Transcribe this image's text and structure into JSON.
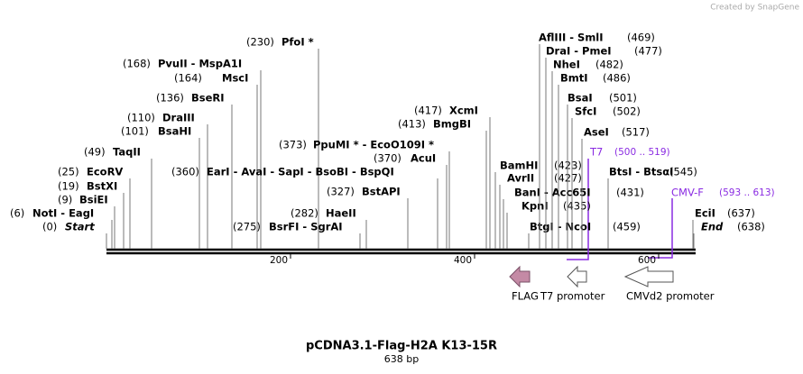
{
  "credit": "Created by SnapGene",
  "sites": [
    {
      "pos": "(230)",
      "name": "PfoI *"
    },
    {
      "pos": "(168)",
      "name": "PvuII  - MspA1I"
    },
    {
      "pos": "(164)",
      "name": "MscI"
    },
    {
      "pos": "(136)",
      "name": "BseRI"
    },
    {
      "pos": "(110)",
      "name": "DraIII"
    },
    {
      "pos": "(101)",
      "name": "BsaHI"
    },
    {
      "pos": "(49)",
      "name": "TaqII"
    },
    {
      "pos": "(25)",
      "name": "EcoRV"
    },
    {
      "pos": "(19)",
      "name": "BstXI"
    },
    {
      "pos": "(9)",
      "name": "BsiEI"
    },
    {
      "pos": "(6)",
      "name": "NotI  - EagI"
    },
    {
      "pos": "(0)",
      "name": "Start"
    },
    {
      "pos": "(360)",
      "name": "EarI  - AvaI  - SapI  - BsoBI  - BspQI"
    },
    {
      "pos": "(373)",
      "name": "PpuMI *  - EcoO109I *"
    },
    {
      "pos": "(370)",
      "name": "AcuI"
    },
    {
      "pos": "(417)",
      "name": "XcmI"
    },
    {
      "pos": "(413)",
      "name": "BmgBI"
    },
    {
      "pos": "(327)",
      "name": "BstAPI"
    },
    {
      "pos": "(282)",
      "name": "HaeII"
    },
    {
      "pos": "(275)",
      "name": "BsrFI  - SgrAI"
    },
    {
      "pos": "(423)",
      "name": "BamHI"
    },
    {
      "pos": "(427)",
      "name": "AvrII"
    },
    {
      "pos": "(431)",
      "name": "BanI  - Acc65I"
    },
    {
      "pos": "(435)",
      "name": "KpnI"
    },
    {
      "pos": "(459)",
      "name": "BtgI  - NcoI"
    },
    {
      "pos": "(469)",
      "name": "AflIII  - SmlI"
    },
    {
      "pos": "(477)",
      "name": "DraI  - PmeI"
    },
    {
      "pos": "(482)",
      "name": "NheI"
    },
    {
      "pos": "(486)",
      "name": "BmtI"
    },
    {
      "pos": "(501)",
      "name": "BsaI"
    },
    {
      "pos": "(502)",
      "name": "SfcI"
    },
    {
      "pos": "(517)",
      "name": "AseI"
    },
    {
      "pos": "(545)",
      "name": "BtsI  - BtsαI"
    },
    {
      "pos": "(637)",
      "name": "EciI"
    },
    {
      "pos": "(638)",
      "name": "End"
    }
  ],
  "primers": [
    {
      "name": "T7",
      "range": "(500 .. 519)"
    },
    {
      "name": "CMV-F",
      "range": "(593 .. 613)"
    }
  ],
  "ruler": [
    "200",
    "400",
    "600"
  ],
  "features": [
    "FLAG",
    "T7 promoter",
    "CMVd2 promoter"
  ],
  "title": "pCDNA3.1-Flag-H2A K13-15R",
  "length": "638 bp"
}
